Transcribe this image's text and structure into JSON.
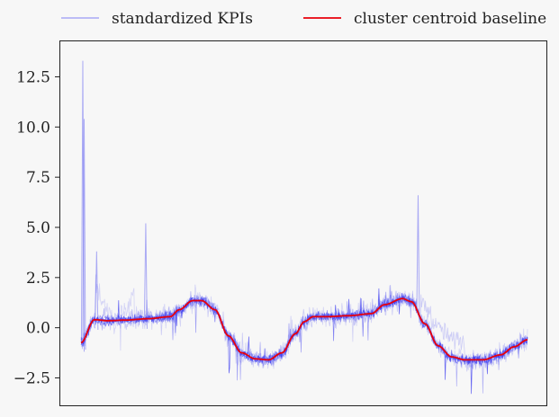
{
  "chart_data": {
    "type": "line",
    "title": "",
    "xlabel": "",
    "ylabel": "",
    "x_ticks_shown": false,
    "ylim": [
      -3.7,
      14.5
    ],
    "y_ticks": [
      -2.5,
      0.0,
      2.5,
      5.0,
      7.5,
      10.0,
      12.5
    ],
    "y_tick_labels": [
      "−2.5",
      "0.0",
      "2.5",
      "5.0",
      "7.5",
      "10.0",
      "12.5"
    ],
    "grid": false,
    "legend": {
      "placement": "top, outside plot",
      "entries": [
        {
          "label": "standardized KPIs",
          "color": "#a9a9f5",
          "style": "thin line"
        },
        {
          "label": "cluster centroid baseline",
          "color": "#e8000b",
          "style": "line"
        }
      ]
    },
    "series": [
      {
        "name": "cluster centroid baseline",
        "color": "#e8000b",
        "x": [
          0,
          0.03,
          0.06,
          0.1,
          0.15,
          0.2,
          0.22,
          0.25,
          0.27,
          0.3,
          0.33,
          0.36,
          0.39,
          0.42,
          0.45,
          0.48,
          0.5,
          0.52,
          0.55,
          0.6,
          0.65,
          0.68,
          0.72,
          0.74,
          0.77,
          0.8,
          0.83,
          0.86,
          0.9,
          0.94,
          0.97,
          1.0
        ],
        "values": [
          -0.75,
          0.4,
          0.35,
          0.38,
          0.45,
          0.55,
          0.9,
          1.35,
          1.35,
          0.9,
          -0.4,
          -1.25,
          -1.55,
          -1.6,
          -1.25,
          -0.3,
          0.3,
          0.55,
          0.55,
          0.6,
          0.7,
          1.15,
          1.45,
          1.3,
          0.2,
          -0.9,
          -1.45,
          -1.6,
          -1.6,
          -1.35,
          -0.95,
          -0.6
        ]
      },
      {
        "name": "standardized KPIs",
        "color": "#3535f0",
        "note": "dense noisy band around the baseline; notable spikes",
        "spikes": [
          {
            "x": 0.004,
            "y": 13.3
          },
          {
            "x": 0.007,
            "y": 10.4
          },
          {
            "x": 0.035,
            "y": 3.8
          },
          {
            "x": 0.145,
            "y": 5.2
          },
          {
            "x": 0.755,
            "y": 6.6
          }
        ]
      }
    ]
  }
}
